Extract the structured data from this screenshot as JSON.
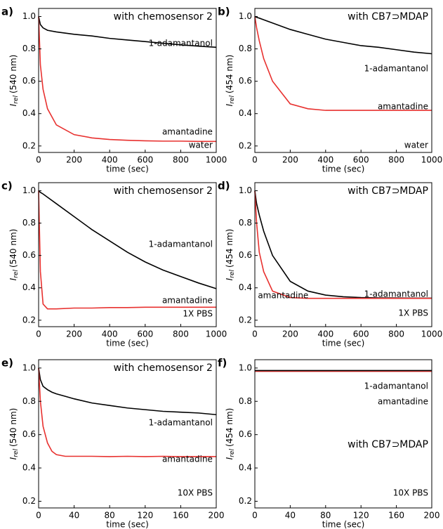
{
  "chart_data": [
    {
      "type": "line",
      "panel": "a)",
      "title": "with chemosensor 2",
      "annotations": [
        {
          "text": "1-adamantanol",
          "color": "#000000"
        },
        {
          "text": "amantadine",
          "color": "#e8312f"
        },
        {
          "text": "water",
          "color": "#000000"
        }
      ],
      "xlabel": "time (sec)",
      "ylabel": {
        "symbol": "I",
        "subscript": "rel",
        "unit": "(540 nm)"
      },
      "x": [
        0,
        10,
        25,
        50,
        100,
        200,
        300,
        400,
        500,
        600,
        700,
        800,
        900,
        1000
      ],
      "series": [
        {
          "color": "#000000",
          "values": [
            1.0,
            0.95,
            0.93,
            0.915,
            0.905,
            0.89,
            0.88,
            0.865,
            0.855,
            0.845,
            0.835,
            0.825,
            0.817,
            0.81
          ]
        },
        {
          "color": "#e8312f",
          "values": [
            1.0,
            0.7,
            0.55,
            0.43,
            0.33,
            0.27,
            0.25,
            0.24,
            0.235,
            0.232,
            0.23,
            0.23,
            0.228,
            0.228
          ]
        }
      ],
      "xlim": [
        0,
        1000
      ],
      "ylim": [
        0.16,
        1.05
      ],
      "xticks": [
        0,
        200,
        400,
        600,
        800,
        1000
      ],
      "yticks": [
        0.2,
        0.4,
        0.6,
        0.8,
        {
          "value": 1,
          "label": "1.0"
        }
      ]
    },
    {
      "type": "line",
      "panel": "b)",
      "title": "with CB7⊃MDAP",
      "annotations": [
        {
          "text": "1-adamantanol",
          "color": "#000000"
        },
        {
          "text": "amantadine",
          "color": "#e8312f"
        },
        {
          "text": "water",
          "color": "#000000"
        }
      ],
      "xlabel": "time (sec)",
      "ylabel": {
        "symbol": "I",
        "subscript": "rel",
        "unit": "(454 nm)"
      },
      "x": [
        0,
        10,
        25,
        50,
        100,
        200,
        300,
        400,
        500,
        600,
        700,
        800,
        900,
        1000
      ],
      "series": [
        {
          "color": "#000000",
          "values": [
            1.0,
            0.995,
            0.99,
            0.98,
            0.96,
            0.92,
            0.89,
            0.86,
            0.84,
            0.82,
            0.81,
            0.795,
            0.78,
            0.77
          ]
        },
        {
          "color": "#e8312f",
          "values": [
            1.0,
            0.93,
            0.85,
            0.74,
            0.6,
            0.46,
            0.43,
            0.42,
            0.42,
            0.42,
            0.42,
            0.42,
            0.42,
            0.42
          ]
        }
      ],
      "xlim": [
        0,
        1000
      ],
      "ylim": [
        0.16,
        1.05
      ],
      "xticks": [
        0,
        200,
        400,
        600,
        800,
        1000
      ],
      "yticks": [
        0.2,
        0.4,
        0.6,
        0.8,
        {
          "value": 1,
          "label": "1.0"
        }
      ]
    },
    {
      "type": "line",
      "panel": "c)",
      "title": "with chemosensor 2",
      "annotations": [
        {
          "text": "1-adamantanol",
          "color": "#000000"
        },
        {
          "text": "amantadine",
          "color": "#e8312f"
        },
        {
          "text": "1X PBS",
          "color": "#000000"
        }
      ],
      "xlabel": "time (sec)",
      "ylabel": {
        "symbol": "I",
        "subscript": "rel",
        "unit": "(540 nm)"
      },
      "x": [
        0,
        10,
        25,
        50,
        100,
        200,
        300,
        400,
        500,
        600,
        700,
        800,
        900,
        1000
      ],
      "series": [
        {
          "color": "#000000",
          "values": [
            1.0,
            0.99,
            0.98,
            0.96,
            0.92,
            0.84,
            0.76,
            0.69,
            0.62,
            0.56,
            0.51,
            0.47,
            0.43,
            0.395
          ]
        },
        {
          "color": "#e8312f",
          "values": [
            1.0,
            0.5,
            0.3,
            0.27,
            0.27,
            0.275,
            0.275,
            0.278,
            0.278,
            0.28,
            0.28,
            0.28,
            0.28,
            0.28
          ]
        }
      ],
      "xlim": [
        0,
        1000
      ],
      "ylim": [
        0.16,
        1.05
      ],
      "xticks": [
        0,
        200,
        400,
        600,
        800,
        1000
      ],
      "yticks": [
        0.2,
        0.4,
        0.6,
        0.8,
        {
          "value": 1,
          "label": "1.0"
        }
      ]
    },
    {
      "type": "line",
      "panel": "d)",
      "title": "with CB7⊃MDAP",
      "annotations": [
        {
          "text": "1-adamantanol",
          "color": "#000000"
        },
        {
          "text": "amantadine",
          "color": "#e8312f"
        },
        {
          "text": "1X PBS",
          "color": "#000000"
        }
      ],
      "xlabel": "time (sec)",
      "ylabel": {
        "symbol": "I",
        "subscript": "rel",
        "unit": "(454 nm)"
      },
      "x": [
        0,
        10,
        25,
        50,
        100,
        200,
        300,
        400,
        500,
        600,
        700,
        800,
        900,
        1000
      ],
      "series": [
        {
          "color": "#000000",
          "values": [
            1.0,
            0.92,
            0.85,
            0.75,
            0.6,
            0.44,
            0.38,
            0.355,
            0.345,
            0.34,
            0.338,
            0.337,
            0.336,
            0.336
          ]
        },
        {
          "color": "#e8312f",
          "values": [
            1.0,
            0.8,
            0.62,
            0.5,
            0.38,
            0.34,
            0.335,
            0.335,
            0.335,
            0.335,
            0.335,
            0.335,
            0.335,
            0.335
          ]
        }
      ],
      "xlim": [
        0,
        1000
      ],
      "ylim": [
        0.16,
        1.05
      ],
      "xticks": [
        0,
        200,
        400,
        600,
        800,
        1000
      ],
      "yticks": [
        0.2,
        0.4,
        0.6,
        0.8,
        {
          "value": 1,
          "label": "1.0"
        }
      ]
    },
    {
      "type": "line",
      "panel": "e)",
      "title": "with chemosensor 2",
      "annotations": [
        {
          "text": "1-adamantanol",
          "color": "#000000"
        },
        {
          "text": "amantadine",
          "color": "#e8312f"
        },
        {
          "text": "10X PBS",
          "color": "#000000"
        }
      ],
      "xlabel": "time (sec)",
      "ylabel": {
        "symbol": "I",
        "subscript": "rel",
        "unit": "(540 nm)"
      },
      "x": [
        0,
        2,
        5,
        10,
        15,
        20,
        30,
        40,
        60,
        80,
        100,
        120,
        140,
        160,
        180,
        200
      ],
      "series": [
        {
          "color": "#000000",
          "values": [
            1.0,
            0.93,
            0.89,
            0.87,
            0.855,
            0.845,
            0.83,
            0.815,
            0.79,
            0.775,
            0.76,
            0.75,
            0.74,
            0.735,
            0.73,
            0.72
          ]
        },
        {
          "color": "#e8312f",
          "values": [
            1.0,
            0.8,
            0.65,
            0.55,
            0.5,
            0.48,
            0.47,
            0.47,
            0.47,
            0.468,
            0.47,
            0.468,
            0.47,
            0.468,
            0.468,
            0.468
          ]
        }
      ],
      "xlim": [
        0,
        200
      ],
      "ylim": [
        0.16,
        1.05
      ],
      "xticks": [
        0,
        40,
        80,
        120,
        160,
        200
      ],
      "yticks": [
        0.2,
        0.4,
        0.6,
        0.8,
        {
          "value": 1,
          "label": "1.0"
        }
      ]
    },
    {
      "type": "line",
      "panel": "f)",
      "title": "with CB7⊃MDAP",
      "annotations": [
        {
          "text": "1-adamantanol",
          "color": "#000000"
        },
        {
          "text": "amantadine",
          "color": "#e8312f"
        },
        {
          "text": "10X PBS",
          "color": "#000000"
        }
      ],
      "xlabel": "time (sec)",
      "ylabel": {
        "symbol": "I",
        "subscript": "rel",
        "unit": "(454 nm)"
      },
      "x": [
        0,
        2,
        5,
        10,
        15,
        20,
        30,
        40,
        60,
        80,
        100,
        120,
        140,
        160,
        180,
        200
      ],
      "series": [
        {
          "color": "#e8312f",
          "values": [
            0.98,
            0.98,
            0.98,
            0.98,
            0.98,
            0.98,
            0.98,
            0.98,
            0.98,
            0.98,
            0.98,
            0.98,
            0.98,
            0.98,
            0.98,
            0.98
          ]
        },
        {
          "color": "#000000",
          "values": [
            0.985,
            0.985,
            0.985,
            0.985,
            0.985,
            0.985,
            0.985,
            0.985,
            0.985,
            0.985,
            0.985,
            0.985,
            0.985,
            0.985,
            0.985,
            0.985
          ]
        }
      ],
      "xlim": [
        0,
        200
      ],
      "ylim": [
        0.16,
        1.05
      ],
      "xticks": [
        0,
        40,
        80,
        120,
        160,
        200
      ],
      "yticks": [
        0.2,
        0.4,
        0.6,
        0.8,
        {
          "value": 1,
          "label": "1.0"
        }
      ]
    }
  ]
}
